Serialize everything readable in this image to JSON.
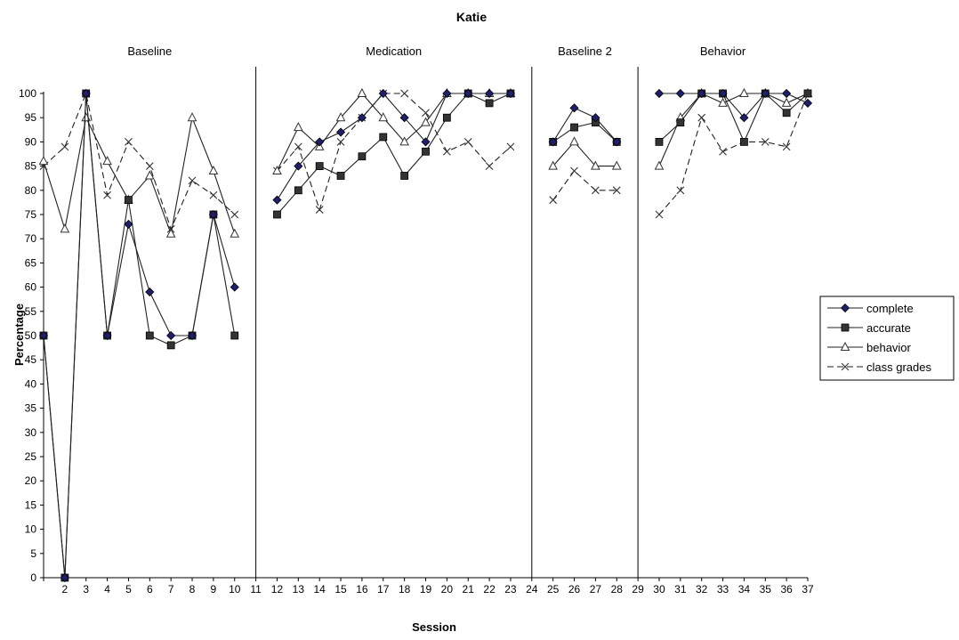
{
  "chart_data": {
    "type": "line",
    "title": "Katie",
    "xlabel": "Session",
    "ylabel": "Percentage",
    "ylim": [
      0,
      100
    ],
    "yticks": [
      0,
      5,
      10,
      15,
      20,
      25,
      30,
      35,
      40,
      45,
      50,
      55,
      60,
      65,
      70,
      75,
      80,
      85,
      90,
      95,
      100
    ],
    "xlim": [
      1,
      37
    ],
    "xtick_labels": [
      "2",
      "3",
      "4",
      "5",
      "6",
      "7",
      "8",
      "9",
      "10",
      "11",
      "12",
      "13",
      "14",
      "15",
      "16",
      "17",
      "18",
      "19",
      "20",
      "21",
      "22",
      "23",
      "24",
      "25",
      "26",
      "27",
      "28",
      "29",
      "30",
      "31",
      "32",
      "33",
      "34",
      "35",
      "36",
      "37"
    ],
    "grid": false,
    "legend_position": "right",
    "phases": [
      {
        "label": "Baseline",
        "start": 1,
        "end": 11
      },
      {
        "label": "Medication",
        "start": 11,
        "end": 24
      },
      {
        "label": "Baseline 2",
        "start": 24,
        "end": 29
      },
      {
        "label": "Behavior",
        "start": 29,
        "end": 37
      }
    ],
    "phase_lines": [
      11,
      24,
      29
    ],
    "series": [
      {
        "name": "complete",
        "marker": "diamond",
        "dash": "solid",
        "marker_fill": "#1f1f6b",
        "points": [
          [
            1,
            50
          ],
          [
            2,
            0
          ],
          [
            3,
            100
          ],
          [
            4,
            50
          ],
          [
            5,
            73
          ],
          [
            6,
            59
          ],
          [
            7,
            50
          ],
          [
            8,
            50
          ],
          [
            9,
            75
          ],
          [
            10,
            60
          ],
          [
            12,
            78
          ],
          [
            13,
            85
          ],
          [
            14,
            90
          ],
          [
            15,
            92
          ],
          [
            16,
            95
          ],
          [
            17,
            100
          ],
          [
            18,
            95
          ],
          [
            19,
            90
          ],
          [
            20,
            100
          ],
          [
            21,
            100
          ],
          [
            22,
            100
          ],
          [
            23,
            100
          ],
          [
            25,
            90
          ],
          [
            26,
            97
          ],
          [
            27,
            95
          ],
          [
            28,
            90
          ],
          [
            30,
            100
          ],
          [
            31,
            100
          ],
          [
            32,
            100
          ],
          [
            33,
            100
          ],
          [
            34,
            95
          ],
          [
            35,
            100
          ],
          [
            36,
            100
          ],
          [
            37,
            98
          ]
        ]
      },
      {
        "name": "accurate",
        "marker": "square",
        "dash": "solid",
        "marker_fill": "#333333",
        "points": [
          [
            1,
            50
          ],
          [
            2,
            0
          ],
          [
            3,
            100
          ],
          [
            4,
            50
          ],
          [
            5,
            78
          ],
          [
            6,
            50
          ],
          [
            7,
            48
          ],
          [
            8,
            50
          ],
          [
            9,
            75
          ],
          [
            10,
            50
          ],
          [
            12,
            75
          ],
          [
            13,
            80
          ],
          [
            14,
            85
          ],
          [
            15,
            83
          ],
          [
            16,
            87
          ],
          [
            17,
            91
          ],
          [
            18,
            83
          ],
          [
            19,
            88
          ],
          [
            20,
            95
          ],
          [
            21,
            100
          ],
          [
            22,
            98
          ],
          [
            23,
            100
          ],
          [
            25,
            90
          ],
          [
            26,
            93
          ],
          [
            27,
            94
          ],
          [
            28,
            90
          ],
          [
            30,
            90
          ],
          [
            31,
            94
          ],
          [
            32,
            100
          ],
          [
            33,
            100
          ],
          [
            34,
            90
          ],
          [
            35,
            100
          ],
          [
            36,
            96
          ],
          [
            37,
            100
          ]
        ]
      },
      {
        "name": "behavior",
        "marker": "triangle",
        "dash": "solid",
        "marker_fill": "#ffffff",
        "points": [
          [
            1,
            86
          ],
          [
            2,
            72
          ],
          [
            3,
            95
          ],
          [
            4,
            86
          ],
          [
            5,
            78
          ],
          [
            6,
            83
          ],
          [
            7,
            71
          ],
          [
            8,
            95
          ],
          [
            9,
            84
          ],
          [
            10,
            71
          ],
          [
            12,
            84
          ],
          [
            13,
            93
          ],
          [
            14,
            89
          ],
          [
            15,
            95
          ],
          [
            16,
            100
          ],
          [
            17,
            95
          ],
          [
            18,
            90
          ],
          [
            19,
            94
          ],
          [
            20,
            100
          ],
          [
            21,
            100
          ],
          [
            22,
            100
          ],
          [
            23,
            100
          ],
          [
            25,
            85
          ],
          [
            26,
            90
          ],
          [
            27,
            85
          ],
          [
            28,
            85
          ],
          [
            30,
            85
          ],
          [
            31,
            95
          ],
          [
            32,
            100
          ],
          [
            33,
            98
          ],
          [
            34,
            100
          ],
          [
            35,
            100
          ],
          [
            36,
            98
          ],
          [
            37,
            100
          ]
        ]
      },
      {
        "name": "class grades",
        "marker": "x",
        "dash": "dashed",
        "marker_fill": "none",
        "points": [
          [
            1,
            85
          ],
          [
            2,
            89
          ],
          [
            3,
            100
          ],
          [
            4,
            79
          ],
          [
            5,
            90
          ],
          [
            6,
            85
          ],
          [
            7,
            72
          ],
          [
            8,
            82
          ],
          [
            9,
            79
          ],
          [
            10,
            75
          ],
          [
            12,
            84
          ],
          [
            13,
            89
          ],
          [
            14,
            76
          ],
          [
            15,
            90
          ],
          [
            16,
            95
          ],
          [
            17,
            100
          ],
          [
            18,
            100
          ],
          [
            19,
            96
          ],
          [
            20,
            88
          ],
          [
            21,
            90
          ],
          [
            22,
            85
          ],
          [
            23,
            89
          ],
          [
            25,
            78
          ],
          [
            26,
            84
          ],
          [
            27,
            80
          ],
          [
            28,
            80
          ],
          [
            30,
            75
          ],
          [
            31,
            80
          ],
          [
            32,
            95
          ],
          [
            33,
            88
          ],
          [
            34,
            90
          ],
          [
            35,
            90
          ],
          [
            36,
            89
          ],
          [
            37,
            100
          ]
        ]
      }
    ]
  }
}
